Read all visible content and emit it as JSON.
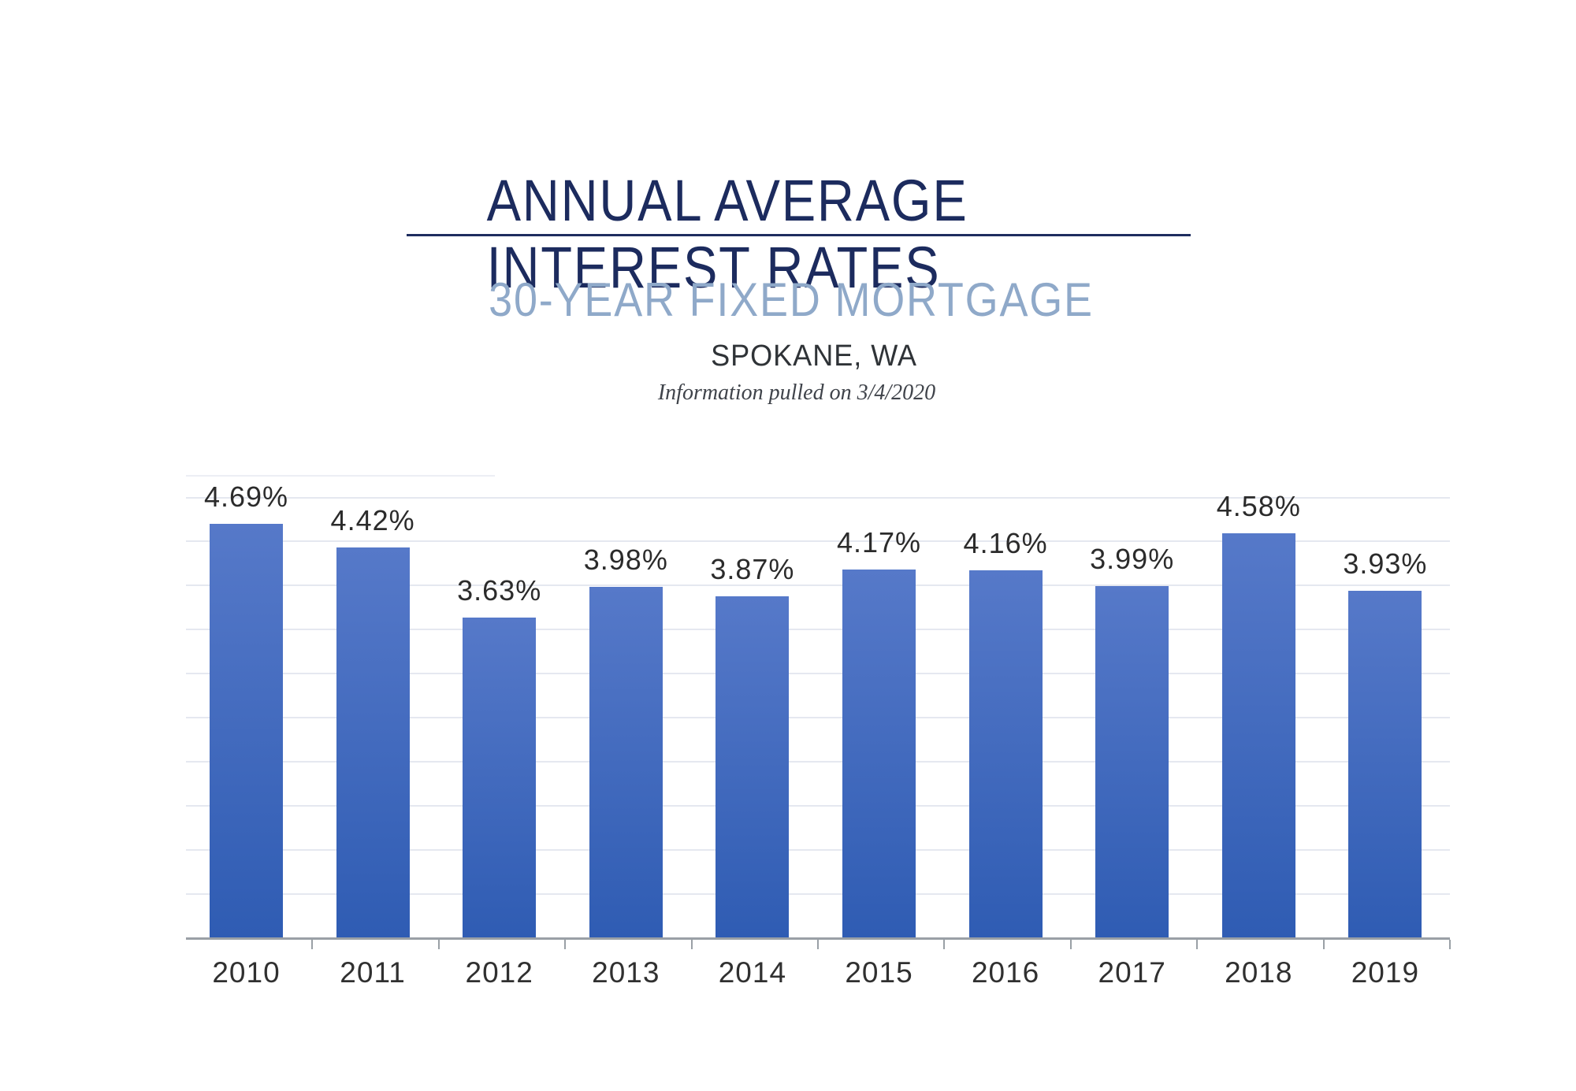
{
  "page": {
    "background": "#ffffff"
  },
  "header": {
    "title": "ANNUAL AVERAGE INTEREST RATES",
    "title_color": "#1c2b5e",
    "rule_color": "#1e2d5f",
    "subtitle": "30-YEAR FIXED MORTGAGE",
    "subtitle_color": "#8fa9c9",
    "location": "SPOKANE, WA",
    "location_color": "#2f3337",
    "note": "Information pulled on 3/4/2020",
    "note_color": "#3f434a"
  },
  "chart_data": {
    "type": "bar",
    "title": "Annual Average Interest Rates - 30-Year Fixed Mortgage - Spokane, WA",
    "categories": [
      "2010",
      "2011",
      "2012",
      "2013",
      "2014",
      "2015",
      "2016",
      "2017",
      "2018",
      "2019"
    ],
    "values": [
      4.69,
      4.42,
      3.63,
      3.98,
      3.87,
      4.17,
      4.16,
      3.99,
      4.58,
      3.93
    ],
    "labels": [
      "4.69%",
      "4.42%",
      "3.63%",
      "3.98%",
      "3.87%",
      "4.17%",
      "4.16%",
      "3.99%",
      "4.58%",
      "3.93%"
    ],
    "xlabel": "",
    "ylabel": "",
    "ylim": [
      0,
      5.25
    ],
    "gridline_step": 0.5,
    "grid": true,
    "legend": false,
    "bar_color_top": "#5679c9",
    "bar_color_bottom": "#2f5cb3",
    "gridline_color": "#e5e8f0",
    "partial_gridline_color": "#eceef4",
    "axis_color": "#9aa0a6",
    "data_label_color": "#2b2b2b",
    "category_label_color": "#303030"
  }
}
